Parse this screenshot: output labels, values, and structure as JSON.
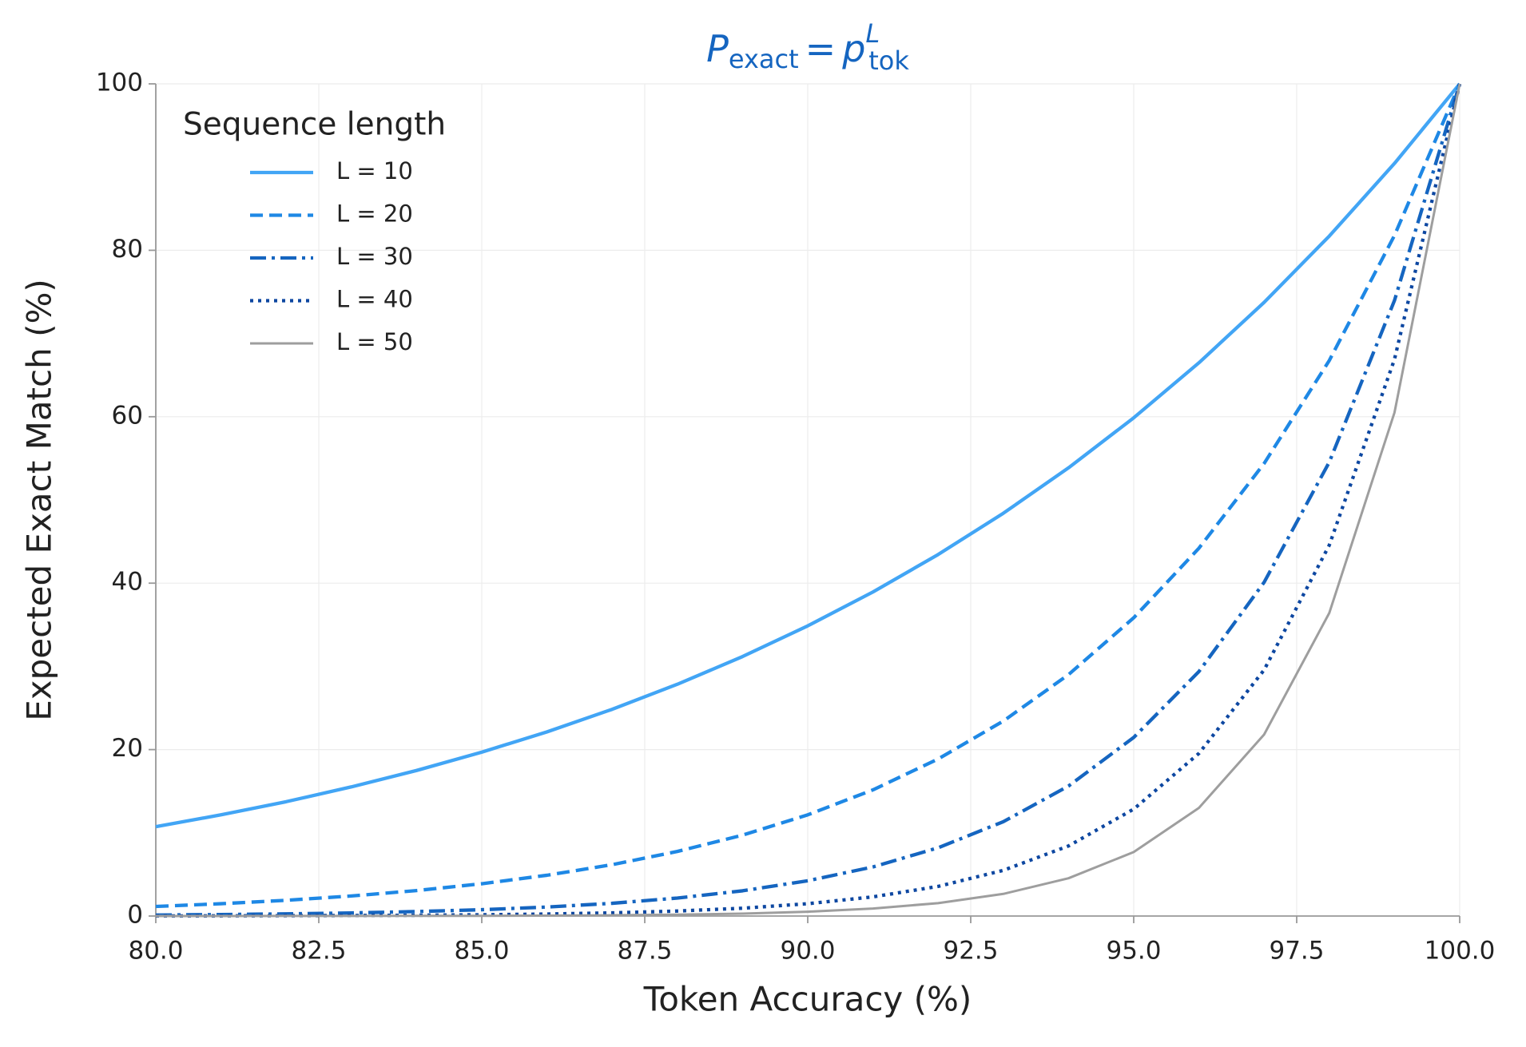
{
  "chart_data": {
    "type": "line",
    "title": {
      "base": "P",
      "sub": "exact",
      "rel": "=",
      "base2": "p",
      "sup": "L",
      "sub2": "tok"
    },
    "xlabel": "Token Accuracy (%)",
    "ylabel": "Expected Exact Match (%)",
    "legend_title": "Sequence length",
    "legend": "upper left",
    "grid": true,
    "x": [
      80,
      81,
      82,
      83,
      84,
      85,
      86,
      87,
      88,
      89,
      90,
      91,
      92,
      93,
      94,
      95,
      96,
      97,
      98,
      99,
      100
    ],
    "series": [
      {
        "name": "L = 10",
        "color": "#42a5f5",
        "linestyle": "solid",
        "values": [
          10.74,
          12.16,
          13.74,
          15.52,
          17.49,
          19.69,
          22.13,
          24.84,
          27.85,
          31.18,
          34.87,
          38.94,
          43.44,
          48.4,
          53.86,
          59.87,
          66.48,
          73.74,
          81.71,
          90.44,
          100
        ]
      },
      {
        "name": "L = 20",
        "color": "#1e88e5",
        "linestyle": "dashed",
        "values": [
          1.15,
          1.48,
          1.89,
          2.41,
          3.06,
          3.88,
          4.9,
          6.17,
          7.76,
          9.72,
          12.16,
          15.16,
          18.87,
          23.43,
          29.01,
          35.84,
          44.2,
          54.38,
          66.76,
          81.79,
          100
        ]
      },
      {
        "name": "L = 30",
        "color": "#1565c0",
        "linestyle": "dashdot",
        "values": [
          0.12,
          0.18,
          0.26,
          0.37,
          0.54,
          0.76,
          1.08,
          1.53,
          2.16,
          3.03,
          4.24,
          5.9,
          8.2,
          11.34,
          15.62,
          21.46,
          29.38,
          40.1,
          54.55,
          73.97,
          100
        ]
      },
      {
        "name": "L = 40",
        "color": "#0d47a1",
        "linestyle": "dotted",
        "values": [
          0.01,
          0.02,
          0.04,
          0.06,
          0.09,
          0.15,
          0.24,
          0.38,
          0.6,
          0.94,
          1.48,
          2.3,
          3.56,
          5.49,
          8.42,
          12.85,
          19.54,
          29.57,
          44.57,
          66.9,
          100
        ]
      },
      {
        "name": "L = 50",
        "color": "#9e9e9e",
        "linestyle": "solid",
        "values": [
          0,
          0,
          0.01,
          0.01,
          0.02,
          0.03,
          0.05,
          0.09,
          0.17,
          0.29,
          0.52,
          0.9,
          1.55,
          2.66,
          4.54,
          7.69,
          12.99,
          21.81,
          36.42,
          60.5,
          100
        ]
      }
    ],
    "xlim": [
      80,
      100
    ],
    "xticks": [
      {
        "value": 80,
        "label": "80.0"
      },
      82.5,
      {
        "value": 85,
        "label": "85.0"
      },
      87.5,
      {
        "value": 90,
        "label": "90.0"
      },
      92.5,
      {
        "value": 95,
        "label": "95.0"
      },
      97.5,
      {
        "value": 100,
        "label": "100.0"
      }
    ],
    "ylim": [
      0,
      100
    ],
    "yticks": [
      0,
      20,
      40,
      60,
      80,
      100
    ]
  }
}
